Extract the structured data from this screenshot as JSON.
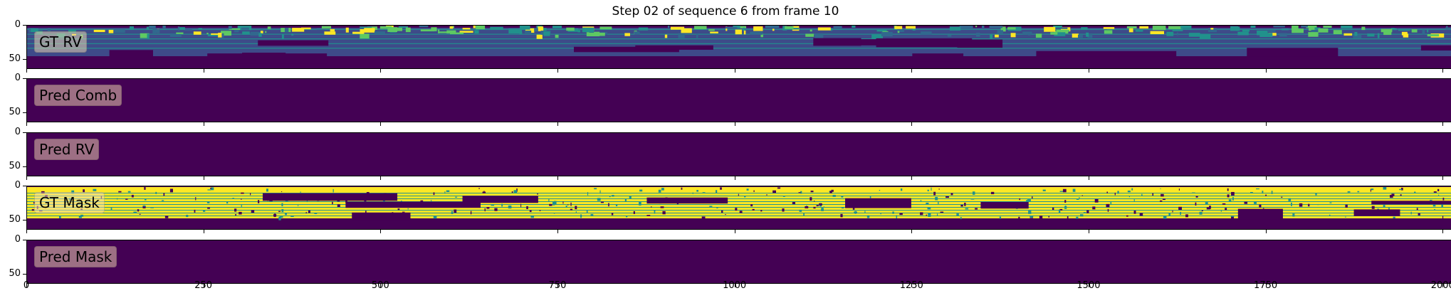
{
  "chart_data": {
    "type": "heatmap",
    "title": "Step 02 of sequence 6 from frame 10",
    "colormap": "viridis",
    "x_ticks": [
      0,
      250,
      500,
      750,
      1000,
      1250,
      1500,
      1750,
      2000
    ],
    "x_range": [
      0,
      2048
    ],
    "y_ticks": [
      0,
      50
    ],
    "y_range": [
      0,
      64
    ],
    "panels": [
      {
        "label": "GT RV",
        "content": "range-image"
      },
      {
        "label": "Pred Comb",
        "content": "empty"
      },
      {
        "label": "Pred RV",
        "content": "empty"
      },
      {
        "label": "GT Mask",
        "content": "mask"
      },
      {
        "label": "Pred Mask",
        "content": "empty"
      }
    ]
  },
  "colors": {
    "viridis_dark": "#440154",
    "viridis_mid": "#3b528b",
    "viridis_teal": "#21918c",
    "viridis_green": "#5ec962",
    "viridis_yellow": "#fde725"
  }
}
